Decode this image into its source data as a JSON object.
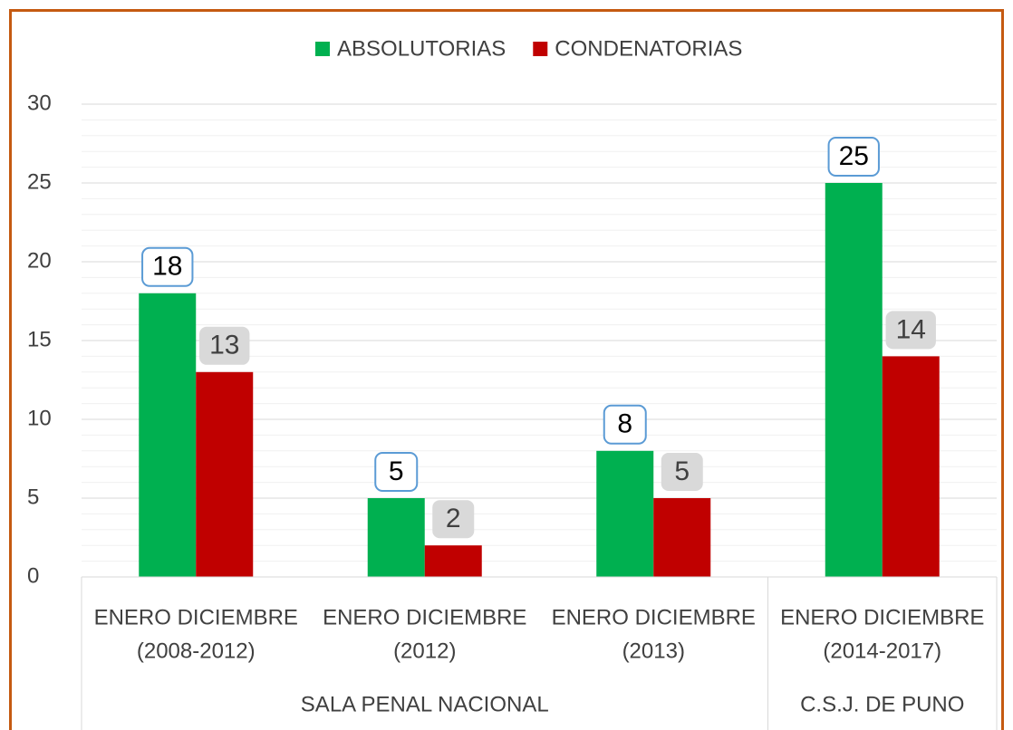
{
  "chart_data": {
    "type": "bar",
    "categories": [
      [
        "ENERO DICIEMBRE",
        "(2008-2012)"
      ],
      [
        "ENERO DICIEMBRE",
        "(2012)"
      ],
      [
        "ENERO DICIEMBRE",
        "(2013)"
      ],
      [
        "ENERO DICIEMBRE",
        "(2014-2017)"
      ]
    ],
    "groups": [
      {
        "name": "SALA PENAL NACIONAL",
        "count": 3
      },
      {
        "name": "C.S.J. DE PUNO",
        "count": 1
      }
    ],
    "series": [
      {
        "name": "ABSOLUTORIAS",
        "color": "#00b050",
        "values": [
          18,
          5,
          8,
          25
        ]
      },
      {
        "name": "CONDENATORIAS",
        "color": "#c00000",
        "values": [
          13,
          2,
          5,
          14
        ]
      }
    ],
    "ylim": [
      0,
      30
    ],
    "yticks": [
      0,
      5,
      10,
      15,
      20,
      25,
      30
    ],
    "grid": true,
    "minor_grid": true,
    "legend": "top"
  }
}
